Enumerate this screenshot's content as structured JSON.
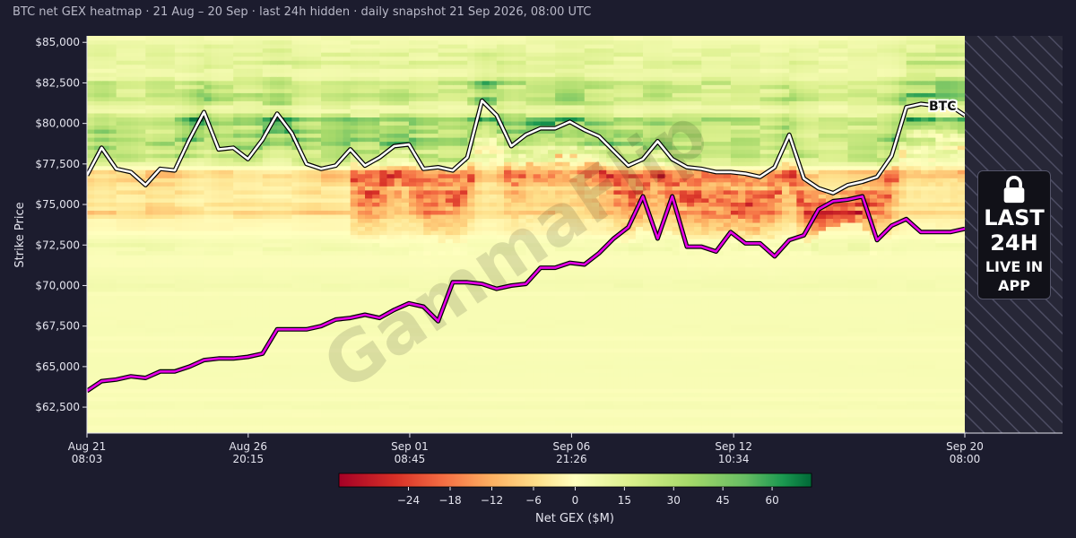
{
  "title": "BTC net GEX heatmap · 21 Aug – 20 Sep · last 24h hidden · daily snapshot 21 Sep 2026, 08:00 UTC",
  "watermark": "GammaFlip",
  "lock_overlay": {
    "icon": "lock-icon",
    "line1": "LAST\n24H",
    "line2": "LIVE IN\nAPP"
  },
  "colors": {
    "background": "#1c1c2e",
    "btc_line": "#ffffff",
    "gamma_flip_line": "#e600e6",
    "negative": "#a50026",
    "neutral": "#ffffbf",
    "positive": "#006837"
  },
  "chart_data": {
    "type": "heatmap",
    "ylabel": "Strike Price",
    "ylim": [
      60900,
      85400
    ],
    "y_ticks": [
      "$62,500",
      "$65,000",
      "$67,500",
      "$70,000",
      "$72,500",
      "$75,000",
      "$77,500",
      "$80,000",
      "$82,500",
      "$85,000"
    ],
    "y_tick_values": [
      62500,
      65000,
      67500,
      70000,
      72500,
      75000,
      77500,
      80000,
      82500,
      85000
    ],
    "x_ticks": [
      {
        "date": "Aug 21",
        "time": "08:03",
        "day": 0.0
      },
      {
        "date": "Aug 26",
        "time": "20:15",
        "day": 5.51
      },
      {
        "date": "Sep 01",
        "time": "08:45",
        "day": 11.03
      },
      {
        "date": "Sep 06",
        "time": "21:26",
        "day": 16.56
      },
      {
        "date": "Sep 12",
        "time": "10:34",
        "day": 22.1
      },
      {
        "date": "Sep 20",
        "time": "08:00",
        "day": 30.0
      }
    ],
    "x_range_days": [
      0,
      30
    ],
    "hidden_range_days": [
      30,
      33.35
    ],
    "colorbar": {
      "label": "Net GEX ($M)",
      "min": -34,
      "max": 72,
      "ticks": [
        -24,
        -18,
        -12,
        -6,
        0,
        15,
        30,
        45,
        60
      ]
    },
    "series": [
      {
        "name": "BTC",
        "x": [
          0,
          0.5,
          1.0,
          1.5,
          2.0,
          2.5,
          3.0,
          3.5,
          4.0,
          4.5,
          5.0,
          5.5,
          6.0,
          6.5,
          7.0,
          7.5,
          8.0,
          8.5,
          9.0,
          9.5,
          10.0,
          10.5,
          11.0,
          11.5,
          12.0,
          12.5,
          13.0,
          13.5,
          14.0,
          14.5,
          15.0,
          15.5,
          16.0,
          16.5,
          17.0,
          17.5,
          18.0,
          18.5,
          19.0,
          19.5,
          20.0,
          20.5,
          21.0,
          21.5,
          22.0,
          22.5,
          23.0,
          23.5,
          24.0,
          24.5,
          25.0,
          25.5,
          26.0,
          26.5,
          27.0,
          27.5,
          28.0,
          28.5,
          29.0,
          29.5,
          30.0
        ],
        "values": [
          76800,
          78500,
          77200,
          77000,
          76200,
          77200,
          77100,
          79000,
          80700,
          78400,
          78500,
          77800,
          79000,
          80600,
          79400,
          77500,
          77200,
          77400,
          78400,
          77400,
          77900,
          78600,
          78700,
          77200,
          77300,
          77100,
          77900,
          81400,
          80500,
          78600,
          79300,
          79700,
          79700,
          80100,
          79600,
          79200,
          78300,
          77400,
          77800,
          78900,
          77800,
          77300,
          77200,
          77000,
          77000,
          76900,
          76700,
          77300,
          79300,
          76600,
          76000,
          75700,
          76200,
          76400,
          76700,
          78000,
          81000,
          81200,
          81100,
          81100,
          80500
        ]
      },
      {
        "name": "Gamma flip",
        "x": [
          0,
          0.5,
          1.0,
          1.5,
          2.0,
          2.5,
          3.0,
          3.5,
          4.0,
          4.5,
          5.0,
          5.5,
          6.0,
          6.5,
          7.0,
          7.5,
          8.0,
          8.5,
          9.0,
          9.5,
          10.0,
          10.5,
          11.0,
          11.5,
          12.0,
          12.5,
          13.0,
          13.5,
          14.0,
          14.5,
          15.0,
          15.5,
          16.0,
          16.5,
          17.0,
          17.5,
          18.0,
          18.5,
          19.0,
          19.5,
          20.0,
          20.5,
          21.0,
          21.5,
          22.0,
          22.5,
          23.0,
          23.5,
          24.0,
          24.5,
          25.0,
          25.5,
          26.0,
          26.5,
          27.0,
          27.5,
          28.0,
          28.5,
          29.0,
          29.5,
          30.0
        ],
        "values": [
          63500,
          64100,
          64200,
          64400,
          64300,
          64700,
          64700,
          65000,
          65400,
          65500,
          65500,
          65600,
          65800,
          67300,
          67300,
          67300,
          67500,
          67900,
          68000,
          68200,
          68000,
          68500,
          68900,
          68700,
          67800,
          70200,
          70200,
          70100,
          69800,
          70000,
          70100,
          71100,
          71100,
          71400,
          71300,
          72000,
          72900,
          73600,
          75500,
          72900,
          75500,
          72400,
          72400,
          72100,
          73300,
          72600,
          72600,
          71800,
          72800,
          73100,
          74700,
          75200,
          75300,
          75500,
          72800,
          73700,
          74100,
          73300,
          73300,
          73300,
          73500
        ]
      }
    ],
    "bands": [
      {
        "price": 84800,
        "value": 18
      },
      {
        "price": 83900,
        "value": 30
      },
      {
        "price": 82600,
        "value": 42
      },
      {
        "price": 81600,
        "value": 36
      },
      {
        "price": 80000,
        "value": 60
      },
      {
        "price": 78900,
        "value": 32
      },
      {
        "price": 77900,
        "value": 20
      },
      {
        "price": 76900,
        "value": -10
      },
      {
        "price": 75900,
        "value": -8
      },
      {
        "price": 74700,
        "value": -14
      },
      {
        "price": 73600,
        "value": -4
      },
      {
        "price": 72400,
        "value": 10
      },
      {
        "price": 70000,
        "value": 14
      },
      {
        "price": 67500,
        "value": 4
      },
      {
        "price": 65000,
        "value": 3
      },
      {
        "price": 62500,
        "value": 6
      }
    ]
  }
}
